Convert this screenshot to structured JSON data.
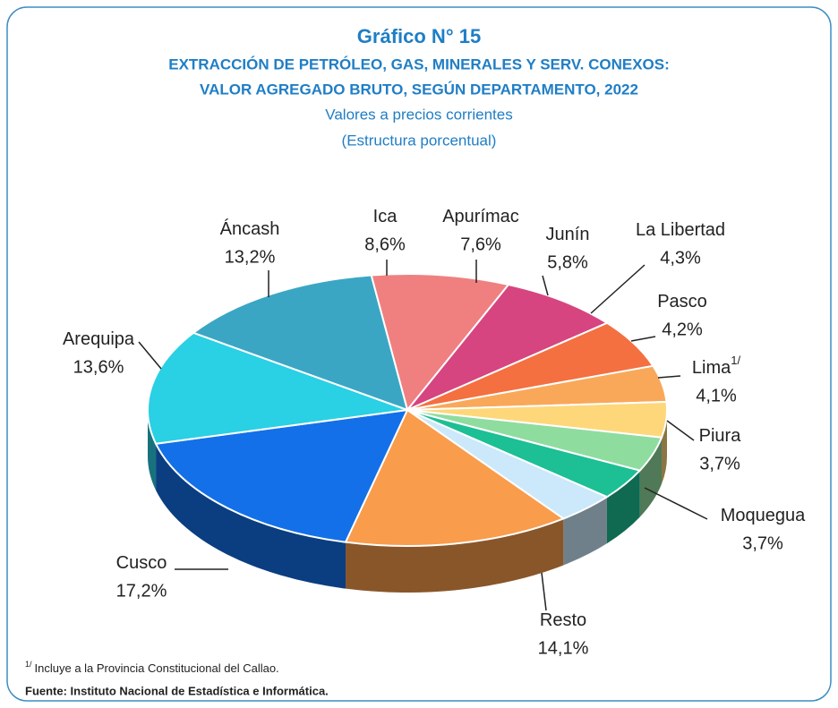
{
  "chart_data": {
    "type": "pie",
    "title": "Gráfico N° 15",
    "subtitle_lines": [
      "EXTRACCIÓN DE PETRÓLEO, GAS, MINERALES Y SERV. CONEXOS:",
      "VALOR AGREGADO BRUTO,  SEGÚN DEPARTAMENTO, 2022"
    ],
    "note_lines": [
      "Valores  a precios corrientes",
      "(Estructura porcentual)"
    ],
    "categories": [
      "Ica",
      "Apurímac",
      "Junín",
      "La Libertad",
      "Pasco",
      "Lima",
      "Piura",
      "Moquegua",
      "Resto",
      "Cusco",
      "Arequipa",
      "Áncash"
    ],
    "category_notes": [
      null,
      null,
      null,
      null,
      null,
      "1/",
      null,
      null,
      null,
      null,
      null,
      null
    ],
    "values": [
      8.6,
      7.6,
      5.8,
      4.3,
      4.2,
      4.1,
      3.7,
      3.7,
      14.1,
      17.2,
      13.6,
      13.2
    ],
    "value_labels": [
      "8,6%",
      "7,6%",
      "5,8%",
      "4,3%",
      "4,2%",
      "4,1%",
      "3,7%",
      "3,7%",
      "14,1%",
      "17,2%",
      "13,6%",
      "13,2%"
    ],
    "colors": [
      "#f08080",
      "#d6457f",
      "#f47040",
      "#f9a85a",
      "#fdd77a",
      "#8fdc9f",
      "#1dbf94",
      "#cce8fb",
      "#f99c4c",
      "#1370e8",
      "#2ad0e4",
      "#3aa6c4"
    ],
    "footnote": "Incluye a la Provincia Constitucional del Callao.",
    "source": "Fuente: Instituto Nacional de Estadística e Informática."
  }
}
